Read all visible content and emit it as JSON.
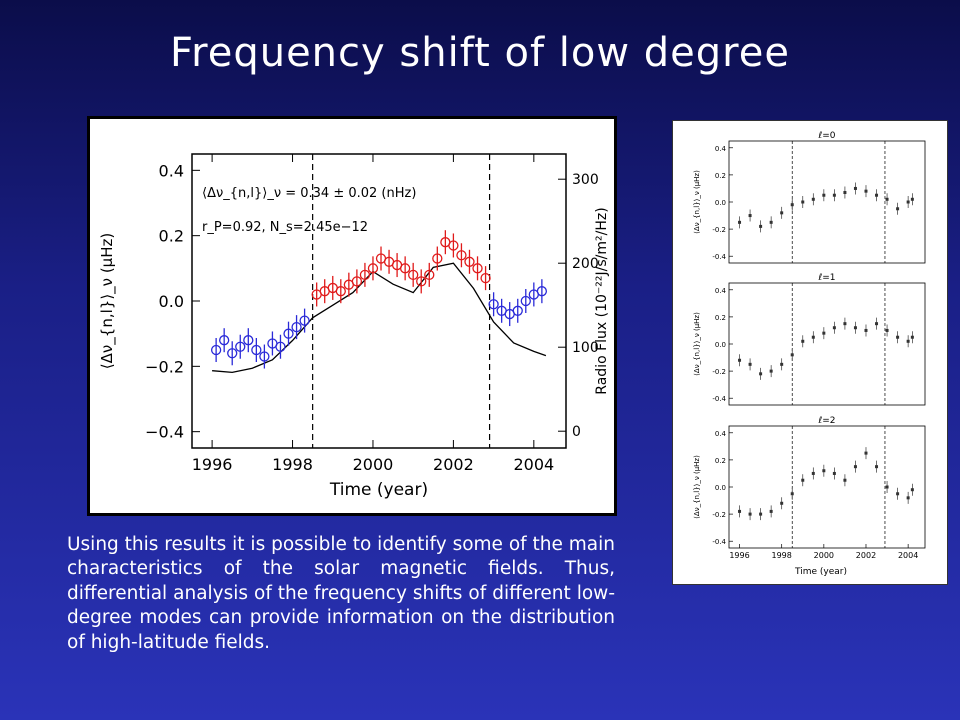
{
  "slide": {
    "title": "Frequency shift of low degree",
    "body": "Using this results it is possible to identify some of the main characteristics of the solar magnetic fields. Thus, differential analysis of the frequency shifts of different low-degree modes can provide information on the distribution of high-latitude fields."
  },
  "colors": {
    "blue_series": "#2a2ad8",
    "red_series": "#e01a1a",
    "flux_line": "#000000",
    "side_points": "#333333"
  },
  "chart_data": [
    {
      "type": "scatter",
      "xlabel": "Time (year)",
      "ylabel": "⟨Δν_{n,l}⟩_ν  (μHz)",
      "y2label": "Radio Flux (10⁻²²J/s/m²/Hz)",
      "xlim": [
        1995.5,
        2004.8
      ],
      "ylim": [
        -0.45,
        0.45
      ],
      "y2lim": [
        -20,
        330
      ],
      "x_ticks": [
        "1996",
        "1998",
        "2000",
        "2002",
        "2004"
      ],
      "y_ticks": [
        "0.4",
        "0.2",
        "0.0",
        "−0.2",
        "−0.4"
      ],
      "y2_ticks": [
        "300",
        "200",
        "100",
        "0"
      ],
      "annotations": [
        "⟨Δν_{n,l}⟩_ν = 0.34 ± 0.02 (nHz)",
        "r_P=0.92, N_s=2.45e−12"
      ],
      "vlines": [
        1998.5,
        2002.9
      ],
      "grid": false,
      "series": [
        {
          "x": [
            1996.1,
            1996.3,
            1996.5,
            1996.7,
            1996.9,
            1997.1,
            1997.3,
            1997.5,
            1997.7,
            1997.9,
            1998.1,
            1998.3
          ],
          "y": [
            -0.15,
            -0.12,
            -0.16,
            -0.14,
            -0.12,
            -0.15,
            -0.17,
            -0.13,
            -0.14,
            -0.1,
            -0.08,
            -0.06
          ]
        },
        {
          "x": [
            1998.6,
            1998.8,
            1999.0,
            1999.2,
            1999.4,
            1999.6,
            1999.8,
            2000.0,
            2000.2,
            2000.4,
            2000.6,
            2000.8,
            2001.0,
            2001.2,
            2001.4,
            2001.6,
            2001.8,
            2002.0,
            2002.2,
            2002.4,
            2002.6,
            2002.8
          ],
          "y": [
            0.02,
            0.03,
            0.04,
            0.03,
            0.05,
            0.06,
            0.08,
            0.1,
            0.13,
            0.12,
            0.11,
            0.1,
            0.08,
            0.06,
            0.08,
            0.13,
            0.18,
            0.17,
            0.14,
            0.12,
            0.1,
            0.07
          ]
        },
        {
          "x": [
            2003.0,
            2003.2,
            2003.4,
            2003.6,
            2003.8,
            2004.0,
            2004.2
          ],
          "y": [
            -0.01,
            -0.03,
            -0.04,
            -0.03,
            0.0,
            0.02,
            0.03
          ]
        }
      ],
      "flux": {
        "x": [
          1996.0,
          1996.5,
          1997.0,
          1997.5,
          1998.0,
          1998.5,
          1999.0,
          1999.5,
          2000.0,
          2000.5,
          2001.0,
          2001.5,
          2002.0,
          2002.5,
          2003.0,
          2003.5,
          2004.0,
          2004.3
        ],
        "y": [
          72,
          70,
          75,
          85,
          108,
          135,
          150,
          165,
          190,
          175,
          165,
          195,
          200,
          170,
          130,
          105,
          95,
          90
        ]
      }
    },
    {
      "type": "scatter",
      "xlabel": "Time (year)",
      "ylabel": "⟨Δν_{n,l}⟩_ν  (μHz)",
      "panels": [
        {
          "title": "ℓ=0",
          "y": [
            -0.15,
            -0.1,
            -0.18,
            -0.15,
            -0.08,
            -0.02,
            0.0,
            0.02,
            0.05,
            0.05,
            0.07,
            0.1,
            0.08,
            0.05,
            0.02,
            -0.05,
            0.0,
            0.02
          ]
        },
        {
          "title": "ℓ=1",
          "y": [
            -0.12,
            -0.15,
            -0.22,
            -0.2,
            -0.15,
            -0.08,
            0.02,
            0.05,
            0.08,
            0.12,
            0.15,
            0.12,
            0.1,
            0.15,
            0.1,
            0.05,
            0.02,
            0.05
          ]
        },
        {
          "title": "ℓ=2",
          "y": [
            -0.18,
            -0.2,
            -0.2,
            -0.18,
            -0.12,
            -0.05,
            0.05,
            0.1,
            0.12,
            0.1,
            0.05,
            0.15,
            0.25,
            0.15,
            0.0,
            -0.05,
            -0.08,
            -0.02
          ]
        }
      ],
      "x": [
        1996.0,
        1996.5,
        1997.0,
        1997.5,
        1998.0,
        1998.5,
        1999.0,
        1999.5,
        2000.0,
        2000.5,
        2001.0,
        2001.5,
        2002.0,
        2002.5,
        2003.0,
        2003.5,
        2004.0,
        2004.2
      ],
      "xlim": [
        1995.5,
        2004.8
      ],
      "ylim": [
        -0.45,
        0.45
      ],
      "x_ticks": [
        "1996",
        "1998",
        "2000",
        "2002",
        "2004"
      ],
      "y_ticks": [
        "0.4",
        "0.2",
        "0.0",
        "-0.2",
        "-0.4"
      ],
      "vlines": [
        1998.5,
        2002.9
      ]
    }
  ]
}
